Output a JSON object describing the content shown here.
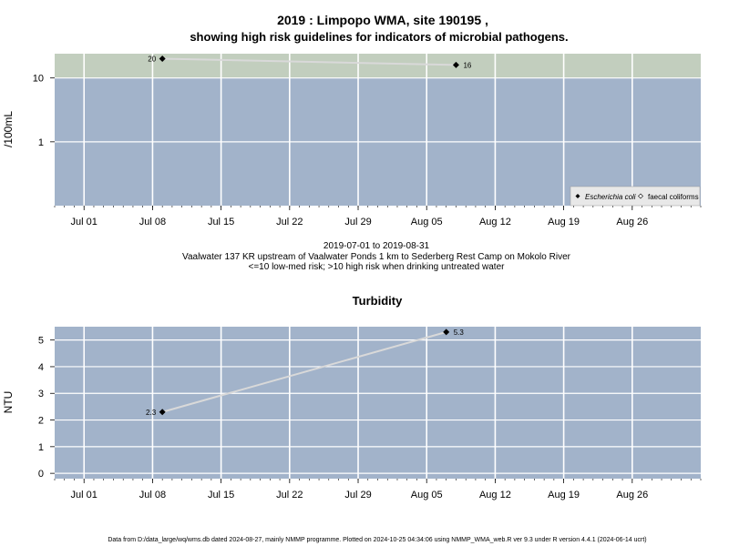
{
  "colors": {
    "plot_background": "#a2b3ca",
    "high_risk_band": "#c2cebe",
    "grid": "#ffffff",
    "series_line": "#d9d9d9",
    "marker": "#000000"
  },
  "footer": "Data from D:/data_large/wq/wms.db dated 2024-08-27, mainly NMMP programme. Plotted on 2024-10-25 04:34:06 using NMMP_WMA_web.R ver 9.3 under R version 4.4.1 (2024-06-14 ucrt)",
  "chart_data": [
    {
      "type": "line",
      "title": "2019 : Limpopo WMA, site 190195 ,",
      "subtitle": "showing high risk guidelines for indicators of microbial pathogens.",
      "ylabel": "/100mL",
      "y_scale": "log",
      "ylim": [
        0.1,
        24
      ],
      "y_ticks": [
        1,
        10
      ],
      "y_tick_labels": [
        "1",
        "10"
      ],
      "xlim": [
        "2019-06-28",
        "2019-09-02"
      ],
      "x_ticks": [
        "2019-07-01",
        "2019-07-08",
        "2019-07-15",
        "2019-07-22",
        "2019-07-29",
        "2019-08-05",
        "2019-08-12",
        "2019-08-19",
        "2019-08-26"
      ],
      "x_tick_labels": [
        "Jul 01",
        "Jul 08",
        "Jul 15",
        "Jul 22",
        "Jul 29",
        "Aug 05",
        "Aug 12",
        "Aug 19",
        "Aug 26"
      ],
      "grid": true,
      "high_risk_threshold": 10,
      "legend_position": "bottom-right",
      "legend": [
        {
          "label": "Escherichia coli",
          "marker": "filled-diamond"
        },
        {
          "label": "faecal coliforms",
          "marker": "open-diamond"
        }
      ],
      "series": [
        {
          "name": "Escherichia coli",
          "x": [
            "2019-07-09",
            "2019-08-08"
          ],
          "y": [
            20,
            16
          ],
          "labels": [
            "20",
            "16"
          ]
        }
      ],
      "caption_lines": [
        "2019-07-01 to 2019-08-31",
        "Vaalwater 137 KR upstream of Vaalwater Ponds 1 km to Sederberg Rest Camp on Mokolo River",
        "<=10 low-med risk; >10 high risk when drinking untreated water"
      ]
    },
    {
      "type": "line",
      "title": "Turbidity",
      "ylabel": "NTU",
      "ylim": [
        -0.2,
        5.5
      ],
      "y_ticks": [
        0,
        1,
        2,
        3,
        4,
        5
      ],
      "y_tick_labels": [
        "0",
        "1",
        "2",
        "3",
        "4",
        "5"
      ],
      "xlim": [
        "2019-06-28",
        "2019-09-02"
      ],
      "x_ticks": [
        "2019-07-01",
        "2019-07-08",
        "2019-07-15",
        "2019-07-22",
        "2019-07-29",
        "2019-08-05",
        "2019-08-12",
        "2019-08-19",
        "2019-08-26"
      ],
      "x_tick_labels": [
        "Jul 01",
        "Jul 08",
        "Jul 15",
        "Jul 22",
        "Jul 29",
        "Aug 05",
        "Aug 12",
        "Aug 19",
        "Aug 26"
      ],
      "grid": true,
      "series": [
        {
          "x": [
            "2019-07-09",
            "2019-08-07"
          ],
          "y": [
            2.3,
            5.3
          ],
          "labels": [
            "2.3",
            "5.3"
          ]
        }
      ]
    }
  ]
}
